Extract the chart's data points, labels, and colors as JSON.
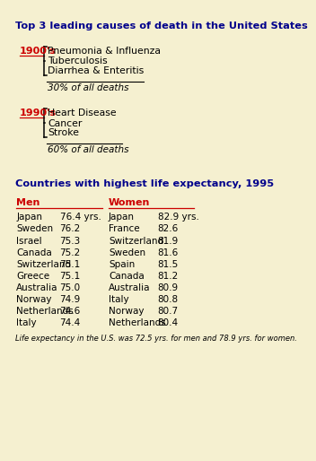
{
  "bg_color": "#f5f0d0",
  "title1": "Top 3 leading causes of death in the United States",
  "title1_color": "#00008B",
  "era1_label": "1900's",
  "era1_diseases": [
    "Pneumonia & Influenza",
    "Tuberculosis",
    "Diarrhea & Enteritis"
  ],
  "era1_pct": "30% of all deaths",
  "era2_label": "1990's",
  "era2_diseases": [
    "Heart Disease",
    "Cancer",
    "Stroke"
  ],
  "era2_pct": "60% of all deaths",
  "title2": "Countries with highest life expectancy, 1995",
  "title2_color": "#00008B",
  "col_men": "Men",
  "col_women": "Women",
  "men_countries": [
    "Japan",
    "Sweden",
    "Israel",
    "Canada",
    "Switzerland",
    "Greece",
    "Australia",
    "Norway",
    "Netherlands",
    "Italy"
  ],
  "men_values": [
    "76.4 yrs.",
    "76.2",
    "75.3",
    "75.2",
    "75.1",
    "75.1",
    "75.0",
    "74.9",
    "74.6",
    "74.4"
  ],
  "women_countries": [
    "Japan",
    "France",
    "Switzerland",
    "Sweden",
    "Spain",
    "Canada",
    "Australia",
    "Italy",
    "Norway",
    "Netherlands"
  ],
  "women_values": [
    "82.9 yrs.",
    "82.6",
    "81.9",
    "81.6",
    "81.5",
    "81.2",
    "80.9",
    "80.8",
    "80.7",
    "80.4"
  ],
  "footer": "Life expectancy in the U.S. was 72.5 yrs. for men and 78.9 yrs. for women.",
  "red_color": "#CC0000",
  "black_color": "#000000"
}
